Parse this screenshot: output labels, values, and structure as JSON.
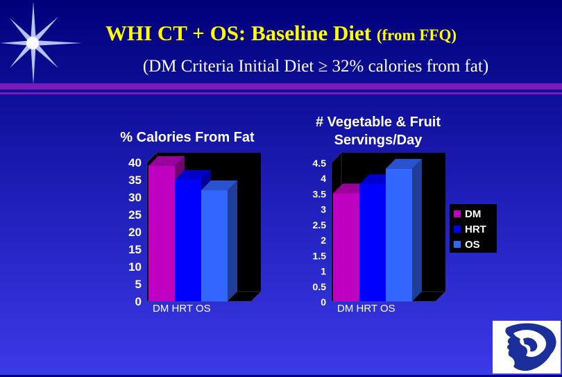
{
  "slide": {
    "title_main": "WHI CT + OS: Baseline Diet",
    "title_small": "(from FFQ)",
    "subtitle": "(DM Criteria Initial Diet ≥ 32% calories from fat)"
  },
  "colors": {
    "DM": "#c000c0",
    "HRT": "#0000ff",
    "OS": "#3366ff",
    "title": "#ffff00"
  },
  "legend": [
    {
      "name": "DM",
      "color": "#c000c0"
    },
    {
      "name": "HRT",
      "color": "#0000ff"
    },
    {
      "name": "OS",
      "color": "#3366ff"
    }
  ],
  "chart_data": [
    {
      "type": "bar",
      "title": "% Calories From Fat",
      "categories": [
        "DM",
        "HRT",
        "OS"
      ],
      "category_label": "DM  HRT  OS",
      "values": [
        39,
        35,
        32
      ],
      "ylim": [
        0,
        40
      ],
      "yticks": [
        "0",
        "5",
        "10",
        "15",
        "20",
        "25",
        "30",
        "35",
        "40"
      ],
      "grid": false
    },
    {
      "type": "bar",
      "title": "# Vegetable & Fruit Servings/Day",
      "title_line1": "# Vegetable & Fruit",
      "title_line2": "Servings/Day",
      "categories": [
        "DM",
        "HRT",
        "OS"
      ],
      "category_label": "DM  HRT  OS",
      "values": [
        3.5,
        3.8,
        4.3
      ],
      "ylim": [
        0,
        4.5
      ],
      "yticks": [
        "0",
        "0.5",
        "1",
        "1.5",
        "2",
        "2.5",
        "3",
        "3.5",
        "4",
        "4.5"
      ],
      "grid": false,
      "legend_position": "right"
    }
  ]
}
